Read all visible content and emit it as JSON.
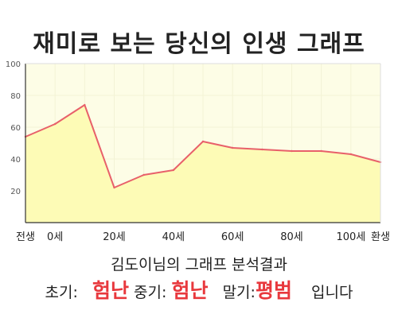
{
  "title": "재미로 보는 당신의 인생 그래프",
  "subtitle": "김도이님의 그래프 분석결과",
  "result": {
    "early_label": "초기:",
    "early_value": "험난",
    "mid_label": "중기:",
    "mid_value": "험난",
    "late_label": "말기:",
    "late_value": "평범",
    "suffix": "입니다"
  },
  "colors": {
    "line": "#e8606a",
    "fill": "#fdfbb6",
    "plot_bg": "#fdfde6",
    "grid": "#f3f3d6",
    "accent": "#e8383d"
  },
  "chart_data": {
    "type": "area",
    "x": [
      -10,
      0,
      10,
      20,
      30,
      40,
      50,
      60,
      70,
      80,
      90,
      100,
      110
    ],
    "y": [
      54,
      62,
      74,
      22,
      30,
      33,
      51,
      47,
      46,
      45,
      45,
      43,
      38
    ],
    "xticks": [
      {
        "label": "전생",
        "x": -10
      },
      {
        "label": "0세",
        "x": 0
      },
      {
        "label": "20세",
        "x": 20
      },
      {
        "label": "40세",
        "x": 40
      },
      {
        "label": "60세",
        "x": 60
      },
      {
        "label": "80세",
        "x": 80
      },
      {
        "label": "100세",
        "x": 100
      },
      {
        "label": "환생",
        "x": 110
      }
    ],
    "yticks": [
      "20",
      "40",
      "60",
      "80",
      "100"
    ],
    "xlim": [
      -10,
      110
    ],
    "ylim": [
      0,
      100
    ],
    "grid": true,
    "xlabel": "",
    "ylabel": ""
  }
}
